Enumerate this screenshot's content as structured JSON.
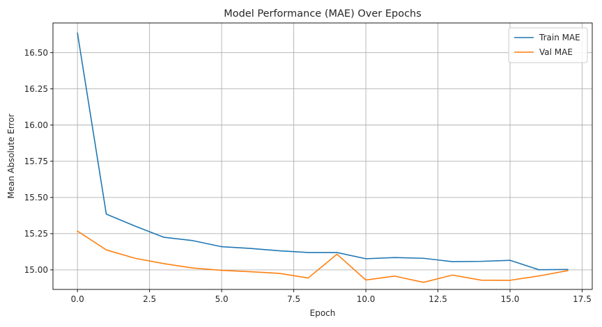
{
  "chart_data": {
    "type": "line",
    "title": "Model Performance (MAE) Over Epochs",
    "xlabel": "Epoch",
    "ylabel": "Mean Absolute Error",
    "xlim": [
      -0.85,
      17.85
    ],
    "ylim": [
      14.865,
      16.705
    ],
    "x_ticks": [
      0.0,
      2.5,
      5.0,
      7.5,
      10.0,
      12.5,
      15.0,
      17.5
    ],
    "x_tick_labels": [
      "0.0",
      "2.5",
      "5.0",
      "7.5",
      "10.0",
      "12.5",
      "15.0",
      "17.5"
    ],
    "y_ticks": [
      15.0,
      15.25,
      15.5,
      15.75,
      16.0,
      16.25,
      16.5
    ],
    "y_tick_labels": [
      "15.00",
      "15.25",
      "15.50",
      "15.75",
      "16.00",
      "16.25",
      "16.50"
    ],
    "grid": true,
    "legend_position": "top-right",
    "x": [
      0,
      1,
      2,
      3,
      4,
      5,
      6,
      7,
      8,
      9,
      10,
      11,
      12,
      13,
      14,
      15,
      16,
      17
    ],
    "series": [
      {
        "name": "Train MAE",
        "color": "#1f77b4",
        "values": [
          16.635,
          15.385,
          15.302,
          15.225,
          15.202,
          15.16,
          15.148,
          15.132,
          15.12,
          15.12,
          15.077,
          15.085,
          15.08,
          15.057,
          15.059,
          15.066,
          15.001,
          15.003
        ]
      },
      {
        "name": "Val MAE",
        "color": "#ff7f0e",
        "values": [
          15.268,
          15.138,
          15.08,
          15.043,
          15.013,
          14.997,
          14.987,
          14.976,
          14.944,
          15.108,
          14.93,
          14.957,
          14.914,
          14.964,
          14.929,
          14.928,
          14.958,
          14.995
        ]
      }
    ]
  }
}
